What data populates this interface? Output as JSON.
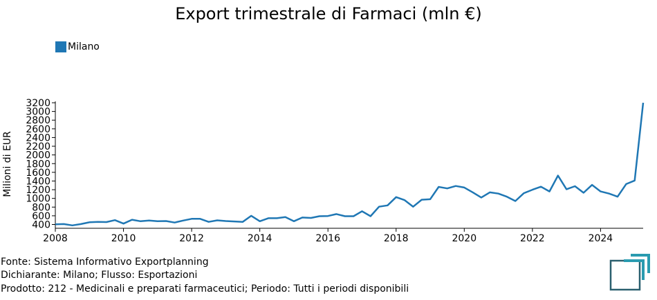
{
  "colors": {
    "series": "#1f77b4",
    "logo": "#2a5f6e",
    "logo_accent": "#2a9bb0"
  },
  "chart_data": {
    "type": "line",
    "title": "Export trimestrale di Farmaci (mln €)",
    "xlabel": "",
    "ylabel": "Milioni di EUR",
    "xlim": [
      2008,
      2025.25
    ],
    "ylim": [
      400,
      3200
    ],
    "y_ticks": [
      400,
      600,
      800,
      1000,
      1200,
      1400,
      1600,
      1800,
      2000,
      2200,
      2400,
      2600,
      2800,
      3000,
      3200
    ],
    "x_ticks": [
      2008,
      2010,
      2012,
      2014,
      2016,
      2018,
      2020,
      2022,
      2024
    ],
    "legend": {
      "position": "top-left"
    },
    "grid": false,
    "series": [
      {
        "name": "Milano",
        "x": [
          2008,
          2008.25,
          2008.5,
          2008.75,
          2009,
          2009.25,
          2009.5,
          2009.75,
          2010,
          2010.25,
          2010.5,
          2010.75,
          2011,
          2011.25,
          2011.5,
          2011.75,
          2012,
          2012.25,
          2012.5,
          2012.75,
          2013,
          2013.25,
          2013.5,
          2013.75,
          2014,
          2014.25,
          2014.5,
          2014.75,
          2015,
          2015.25,
          2015.5,
          2015.75,
          2016,
          2016.25,
          2016.5,
          2016.75,
          2017,
          2017.25,
          2017.5,
          2017.75,
          2018,
          2018.25,
          2018.5,
          2018.75,
          2019,
          2019.25,
          2019.5,
          2019.75,
          2020,
          2020.25,
          2020.5,
          2020.75,
          2021,
          2021.25,
          2021.5,
          2021.75,
          2022,
          2022.25,
          2022.5,
          2022.75,
          2023,
          2023.25,
          2023.5,
          2023.75,
          2024,
          2024.25,
          2024.5,
          2024.75,
          2025,
          2025.25
        ],
        "values": [
          405,
          410,
          380,
          410,
          450,
          460,
          455,
          500,
          420,
          510,
          475,
          490,
          475,
          480,
          445,
          490,
          530,
          530,
          460,
          495,
          480,
          470,
          460,
          600,
          475,
          545,
          545,
          570,
          475,
          560,
          550,
          590,
          595,
          640,
          590,
          590,
          705,
          590,
          810,
          840,
          1030,
          960,
          810,
          970,
          980,
          1265,
          1230,
          1285,
          1250,
          1140,
          1020,
          1140,
          1110,
          1040,
          940,
          1120,
          1200,
          1270,
          1160,
          1525,
          1210,
          1280,
          1130,
          1310,
          1160,
          1110,
          1040,
          1330,
          1410,
          3200
        ]
      }
    ]
  },
  "legend": {
    "label": "Milano"
  },
  "footer": {
    "source": "Fonte: Sistema Informativo Exportplanning",
    "declarant": "Dichiarante: Milano; Flusso: Esportazioni",
    "product": "Prodotto: 212 - Medicinali e preparati farmaceutici; Periodo: Tutti i periodi disponibili"
  }
}
